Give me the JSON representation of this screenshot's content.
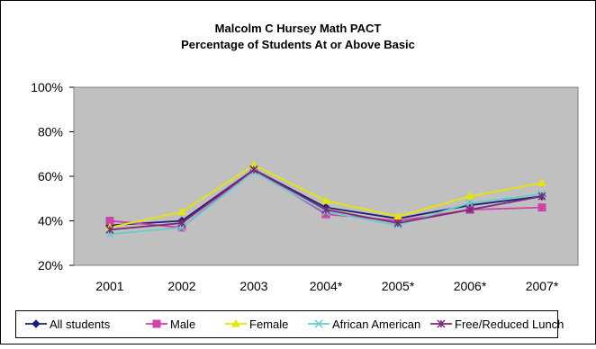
{
  "chart_data": {
    "type": "line",
    "title": [
      "Malcolm C Hursey Math PACT",
      "Percentage of Students At or Above Basic"
    ],
    "xlabel": "",
    "ylabel": "",
    "categories": [
      "2001",
      "2002",
      "2003",
      "2004*",
      "2005*",
      "2006*",
      "2007*"
    ],
    "ylim": [
      0.2,
      1.0
    ],
    "yticks": [
      0.2,
      0.4,
      0.6,
      0.8,
      1.0
    ],
    "ytick_labels": [
      "20%",
      "40%",
      "60%",
      "80%",
      "100%"
    ],
    "grid": false,
    "legend_position": "bottom",
    "plot_background": "#c0c0c0",
    "series": [
      {
        "name": "All students",
        "color": "#1f1f7a",
        "marker": "diamond",
        "values": [
          0.38,
          0.4,
          0.63,
          0.46,
          0.41,
          0.47,
          0.51
        ]
      },
      {
        "name": "Male",
        "color": "#cc44aa",
        "marker": "square",
        "values": [
          0.4,
          0.37,
          0.63,
          0.43,
          0.4,
          0.45,
          0.46
        ]
      },
      {
        "name": "Female",
        "color": "#e6e600",
        "marker": "triangle",
        "values": [
          0.37,
          0.44,
          0.65,
          0.49,
          0.42,
          0.51,
          0.57
        ]
      },
      {
        "name": "African American",
        "color": "#66cccc",
        "marker": "x",
        "values": [
          0.34,
          0.37,
          0.62,
          0.44,
          0.38,
          0.48,
          0.52
        ]
      },
      {
        "name": "Free/Reduced Lunch",
        "color": "#7a2a7a",
        "marker": "star",
        "values": [
          0.36,
          0.39,
          0.63,
          0.45,
          0.39,
          0.45,
          0.51
        ]
      }
    ]
  }
}
